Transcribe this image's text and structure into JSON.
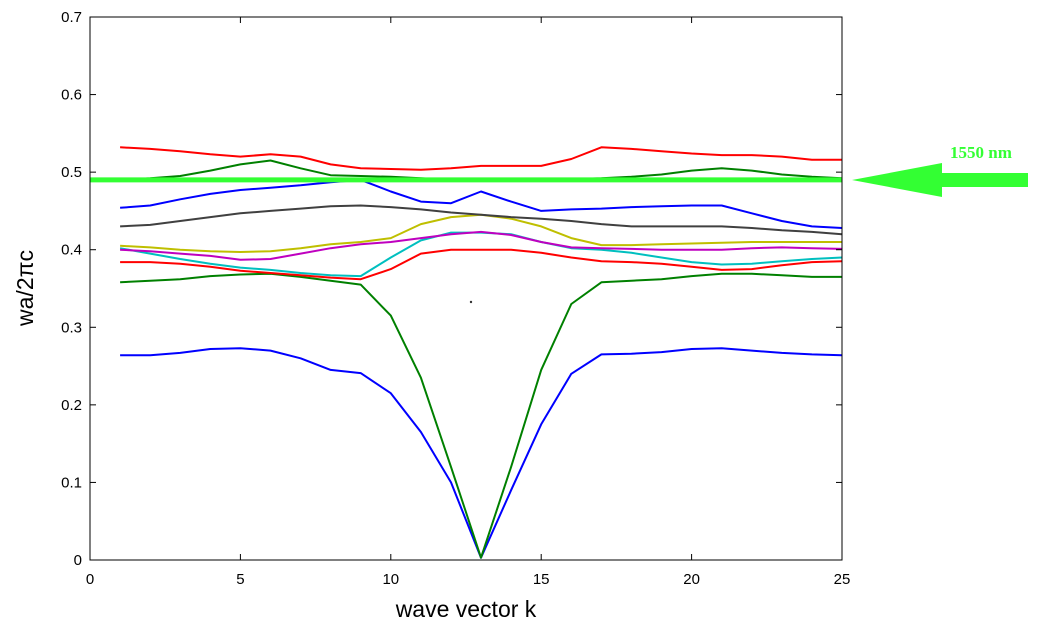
{
  "chart_data": {
    "type": "line",
    "xlabel": "wave vector k",
    "ylabel": "wa/2πc",
    "xlim": [
      0,
      25
    ],
    "ylim": [
      0,
      0.7
    ],
    "x_ticks": [
      0,
      5,
      10,
      15,
      20,
      25
    ],
    "x_tick_labels": [
      "0",
      "5",
      "10",
      "15",
      "20",
      "25"
    ],
    "y_ticks": [
      0,
      0.1,
      0.2,
      0.3,
      0.4,
      0.5,
      0.6,
      0.7
    ],
    "y_tick_labels": [
      "0",
      "0.1",
      "0.2",
      "0.3",
      "0.4",
      "0.5",
      "0.6",
      "0.7"
    ],
    "grid": false,
    "x": [
      1,
      2,
      3,
      4,
      5,
      6,
      7,
      8,
      9,
      10,
      11,
      12,
      13,
      14,
      15,
      16,
      17,
      18,
      19,
      20,
      21,
      22,
      23,
      24,
      25
    ],
    "series": [
      {
        "color": "#0000ff",
        "values": [
          0.264,
          0.264,
          0.267,
          0.272,
          0.273,
          0.27,
          0.26,
          0.245,
          0.241,
          0.215,
          0.165,
          0.1,
          0.003,
          0.09,
          0.175,
          0.24,
          0.265,
          0.266,
          0.268,
          0.272,
          0.273,
          0.27,
          0.267,
          0.265,
          0.264
        ]
      },
      {
        "color": "#008000",
        "values": [
          0.358,
          0.36,
          0.362,
          0.366,
          0.368,
          0.369,
          0.365,
          0.36,
          0.355,
          0.315,
          0.235,
          0.12,
          0.003,
          0.12,
          0.245,
          0.33,
          0.358,
          0.36,
          0.362,
          0.366,
          0.369,
          0.369,
          0.367,
          0.365,
          0.365
        ]
      },
      {
        "color": "#ff0000",
        "values": [
          0.384,
          0.384,
          0.382,
          0.378,
          0.373,
          0.37,
          0.367,
          0.364,
          0.362,
          0.375,
          0.395,
          0.4,
          0.4,
          0.4,
          0.396,
          0.39,
          0.385,
          0.384,
          0.382,
          0.378,
          0.374,
          0.375,
          0.38,
          0.384,
          0.385
        ]
      },
      {
        "color": "#00bfbf",
        "values": [
          0.402,
          0.395,
          0.388,
          0.382,
          0.377,
          0.374,
          0.37,
          0.367,
          0.366,
          0.39,
          0.412,
          0.422,
          0.422,
          0.42,
          0.41,
          0.402,
          0.4,
          0.396,
          0.39,
          0.384,
          0.381,
          0.382,
          0.385,
          0.388,
          0.39
        ]
      },
      {
        "color": "#bf00bf",
        "values": [
          0.4,
          0.398,
          0.395,
          0.392,
          0.387,
          0.388,
          0.395,
          0.402,
          0.407,
          0.41,
          0.415,
          0.42,
          0.423,
          0.419,
          0.41,
          0.403,
          0.402,
          0.401,
          0.4,
          0.4,
          0.4,
          0.402,
          0.403,
          0.402,
          0.401
        ]
      },
      {
        "color": "#bfbf00",
        "values": [
          0.405,
          0.403,
          0.4,
          0.398,
          0.397,
          0.398,
          0.402,
          0.407,
          0.41,
          0.415,
          0.433,
          0.442,
          0.445,
          0.44,
          0.43,
          0.415,
          0.406,
          0.406,
          0.407,
          0.408,
          0.409,
          0.41,
          0.41,
          0.41,
          0.41
        ]
      },
      {
        "color": "#404040",
        "values": [
          0.43,
          0.432,
          0.437,
          0.442,
          0.447,
          0.45,
          0.453,
          0.456,
          0.457,
          0.455,
          0.452,
          0.448,
          0.445,
          0.442,
          0.44,
          0.437,
          0.433,
          0.43,
          0.43,
          0.43,
          0.43,
          0.428,
          0.425,
          0.423,
          0.42
        ]
      },
      {
        "color": "#0000ff",
        "values": [
          0.454,
          0.457,
          0.465,
          0.472,
          0.477,
          0.48,
          0.483,
          0.487,
          0.49,
          0.475,
          0.462,
          0.46,
          0.475,
          0.462,
          0.45,
          0.452,
          0.453,
          0.455,
          0.456,
          0.457,
          0.457,
          0.447,
          0.437,
          0.43,
          0.428
        ]
      },
      {
        "color": "#008000",
        "values": [
          0.49,
          0.492,
          0.495,
          0.502,
          0.51,
          0.515,
          0.505,
          0.496,
          0.495,
          0.494,
          0.492,
          0.49,
          0.489,
          0.489,
          0.49,
          0.491,
          0.492,
          0.494,
          0.497,
          0.502,
          0.505,
          0.502,
          0.497,
          0.494,
          0.492
        ]
      },
      {
        "color": "#ff0000",
        "values": [
          0.532,
          0.53,
          0.527,
          0.523,
          0.52,
          0.523,
          0.52,
          0.51,
          0.505,
          0.504,
          0.503,
          0.505,
          0.508,
          0.508,
          0.508,
          0.517,
          0.532,
          0.53,
          0.527,
          0.524,
          0.522,
          0.522,
          0.52,
          0.516,
          0.516
        ]
      }
    ],
    "reference_line": {
      "y": 0.49,
      "color": "#33ff33"
    },
    "annotation": {
      "text": "1550 nm",
      "color": "#33ff33"
    }
  }
}
